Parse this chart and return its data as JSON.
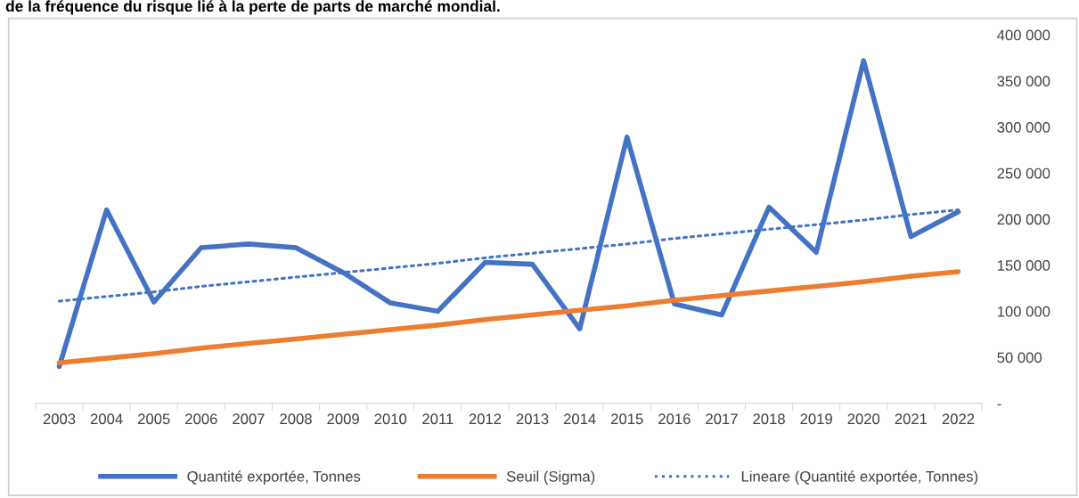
{
  "chart_data": {
    "type": "line",
    "title": "de la fréquence du risque lié à la perte de parts de marché mondial.",
    "categories": [
      "2003",
      "2004",
      "2005",
      "2006",
      "2007",
      "2008",
      "2009",
      "2010",
      "2011",
      "2012",
      "2013",
      "2014",
      "2015",
      "2016",
      "2017",
      "2018",
      "2019",
      "2020",
      "2021",
      "2022"
    ],
    "series": [
      {
        "name": "Quantité exportée, Tonnes",
        "color": "#4472c4",
        "line_style": "solid",
        "values": [
          40000,
          210000,
          110000,
          169000,
          173000,
          169000,
          142000,
          109000,
          100000,
          153000,
          151000,
          81000,
          289000,
          108000,
          96000,
          213000,
          164000,
          372000,
          181000,
          208000
        ]
      },
      {
        "name": "Seuil (Sigma)",
        "color": "#ed7d31",
        "line_style": "solid",
        "values": [
          44000,
          49000,
          54000,
          60000,
          65000,
          70000,
          75000,
          80000,
          85000,
          91000,
          96000,
          101000,
          106000,
          112000,
          117000,
          122000,
          127000,
          132000,
          138000,
          143000
        ]
      },
      {
        "name": "Lineare (Quantité exportée, Tonnes)",
        "color": "#4472c4",
        "line_style": "dotted",
        "values": [
          111000,
          116000,
          121000,
          127000,
          132000,
          137000,
          142000,
          147000,
          152000,
          158000,
          163000,
          168000,
          173000,
          179000,
          184000,
          189000,
          194000,
          199000,
          205000,
          210000
        ]
      }
    ],
    "ylim": [
      0,
      400000
    ],
    "yticks": [
      {
        "value": 0,
        "label": "-"
      },
      {
        "value": 50000,
        "label": "50 000"
      },
      {
        "value": 100000,
        "label": "100 000"
      },
      {
        "value": 150000,
        "label": "150 000"
      },
      {
        "value": 200000,
        "label": "200 000"
      },
      {
        "value": 250000,
        "label": "250 000"
      },
      {
        "value": 300000,
        "label": "300 000"
      },
      {
        "value": 350000,
        "label": "350 000"
      },
      {
        "value": 400000,
        "label": "400 000"
      }
    ],
    "grid": false,
    "legend": "bottom"
  }
}
